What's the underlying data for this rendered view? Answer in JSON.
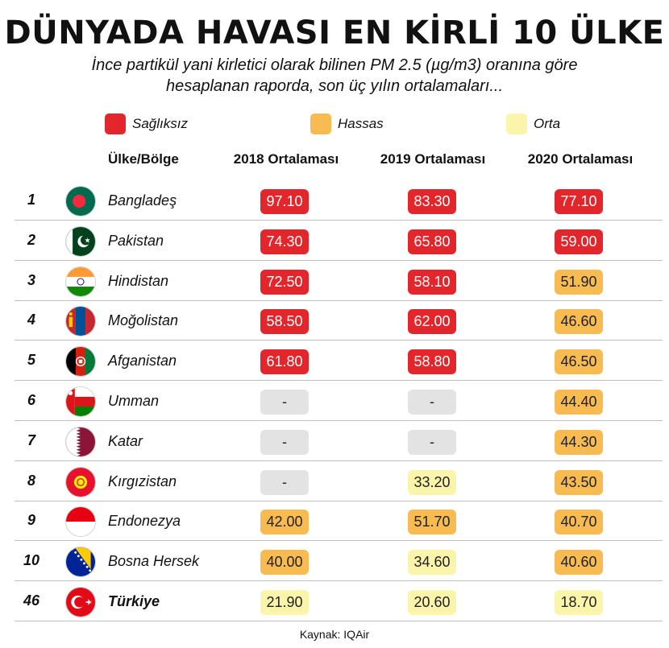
{
  "title": "DÜNYADA HAVASI EN KİRLİ 10 ÜLKE",
  "subtitle_line1": "İnce partikül yani kirletici olarak bilinen PM 2.5 (µg/m3) oranına göre",
  "subtitle_line2": "hesaplanan raporda, son üç yılın ortalamaları...",
  "legend": [
    {
      "label": "Sağlıksız",
      "color": "#e3262b"
    },
    {
      "label": "Hassas",
      "color": "#f7bb52"
    },
    {
      "label": "Orta",
      "color": "#fbf5ab"
    }
  ],
  "headers": {
    "country": "Ülke/Bölge",
    "y2018": "2018 Ortalaması",
    "y2019": "2019 Ortalaması",
    "y2020": "2020 Ortalaması"
  },
  "rows": [
    {
      "rank": "1",
      "country": "Bangladeş",
      "flag": "bangladesh-flag-icon",
      "v2018": "97.10",
      "c2018": "s",
      "v2019": "83.30",
      "c2019": "s",
      "v2020": "77.10",
      "c2020": "s"
    },
    {
      "rank": "2",
      "country": "Pakistan",
      "flag": "pakistan-flag-icon",
      "v2018": "74.30",
      "c2018": "s",
      "v2019": "65.80",
      "c2019": "s",
      "v2020": "59.00",
      "c2020": "s"
    },
    {
      "rank": "3",
      "country": "Hindistan",
      "flag": "india-flag-icon",
      "v2018": "72.50",
      "c2018": "s",
      "v2019": "58.10",
      "c2019": "s",
      "v2020": "51.90",
      "c2020": "h"
    },
    {
      "rank": "4",
      "country": "Moğolistan",
      "flag": "mongolia-flag-icon",
      "v2018": "58.50",
      "c2018": "s",
      "v2019": "62.00",
      "c2019": "s",
      "v2020": "46.60",
      "c2020": "h"
    },
    {
      "rank": "5",
      "country": "Afganistan",
      "flag": "afghanistan-flag-icon",
      "v2018": "61.80",
      "c2018": "s",
      "v2019": "58.80",
      "c2019": "s",
      "v2020": "46.50",
      "c2020": "h"
    },
    {
      "rank": "6",
      "country": "Umman",
      "flag": "oman-flag-icon",
      "v2018": "-",
      "c2018": "n",
      "v2019": "-",
      "c2019": "n",
      "v2020": "44.40",
      "c2020": "h"
    },
    {
      "rank": "7",
      "country": "Katar",
      "flag": "qatar-flag-icon",
      "v2018": "-",
      "c2018": "n",
      "v2019": "-",
      "c2019": "n",
      "v2020": "44.30",
      "c2020": "h"
    },
    {
      "rank": "8",
      "country": "Kırgızistan",
      "flag": "kyrgyzstan-flag-icon",
      "v2018": "-",
      "c2018": "n",
      "v2019": "33.20",
      "c2019": "o",
      "v2020": "43.50",
      "c2020": "h"
    },
    {
      "rank": "9",
      "country": "Endonezya",
      "flag": "indonesia-flag-icon",
      "v2018": "42.00",
      "c2018": "h",
      "v2019": "51.70",
      "c2019": "h",
      "v2020": "40.70",
      "c2020": "h"
    },
    {
      "rank": "10",
      "country": "Bosna Hersek",
      "flag": "bosnia-flag-icon",
      "v2018": "40.00",
      "c2018": "h",
      "v2019": "34.60",
      "c2019": "o",
      "v2020": "40.60",
      "c2020": "h"
    },
    {
      "rank": "46",
      "country": "Türkiye",
      "flag": "turkey-flag-icon",
      "v2018": "21.90",
      "c2018": "o",
      "v2019": "20.60",
      "c2019": "o",
      "v2020": "18.70",
      "c2020": "o"
    }
  ],
  "source": "Kaynak: IQAir"
}
